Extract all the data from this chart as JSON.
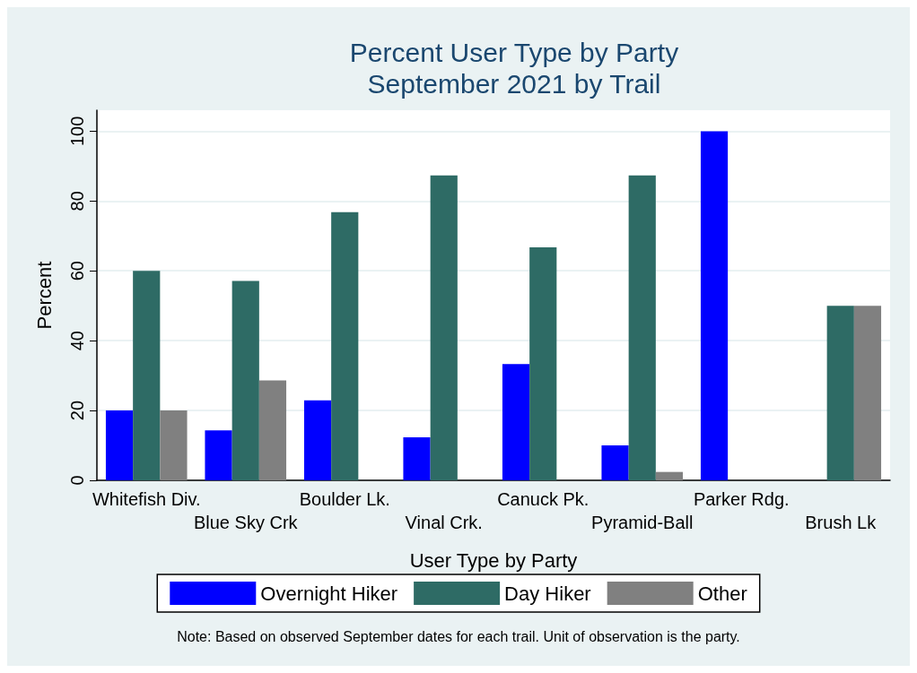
{
  "chart_data": {
    "type": "bar",
    "title": "Percent User Type by Party",
    "subtitle": "September 2021 by Trail",
    "xlabel": "User Type by Party",
    "ylabel": "Percent",
    "categories": [
      "Whitefish Div.",
      "Blue Sky Crk",
      "Boulder Lk.",
      "Vinal Crk.",
      "Canuck Pk.",
      "Pyramid-Ball",
      "Parker Rdg.",
      "Brush Lk"
    ],
    "series": [
      {
        "name": "Overnight Hiker",
        "color": "#0000ff",
        "values": [
          20,
          14.3,
          22.9,
          12.3,
          33.3,
          10,
          100,
          0
        ]
      },
      {
        "name": "Day Hiker",
        "color": "#2e6b65",
        "values": [
          60,
          57.1,
          76.8,
          87.3,
          66.7,
          87.3,
          0,
          50
        ]
      },
      {
        "name": "Other",
        "color": "#808080",
        "values": [
          20,
          28.6,
          0,
          0,
          0,
          2.4,
          0,
          50
        ]
      }
    ],
    "ylim": [
      0,
      106
    ],
    "yticks": [
      0,
      20,
      40,
      60,
      80,
      100
    ],
    "grid": "y",
    "legend": "bottom",
    "annotations": [
      "Note: Based on observed September dates for each trail. Unit of observation is the party."
    ]
  }
}
